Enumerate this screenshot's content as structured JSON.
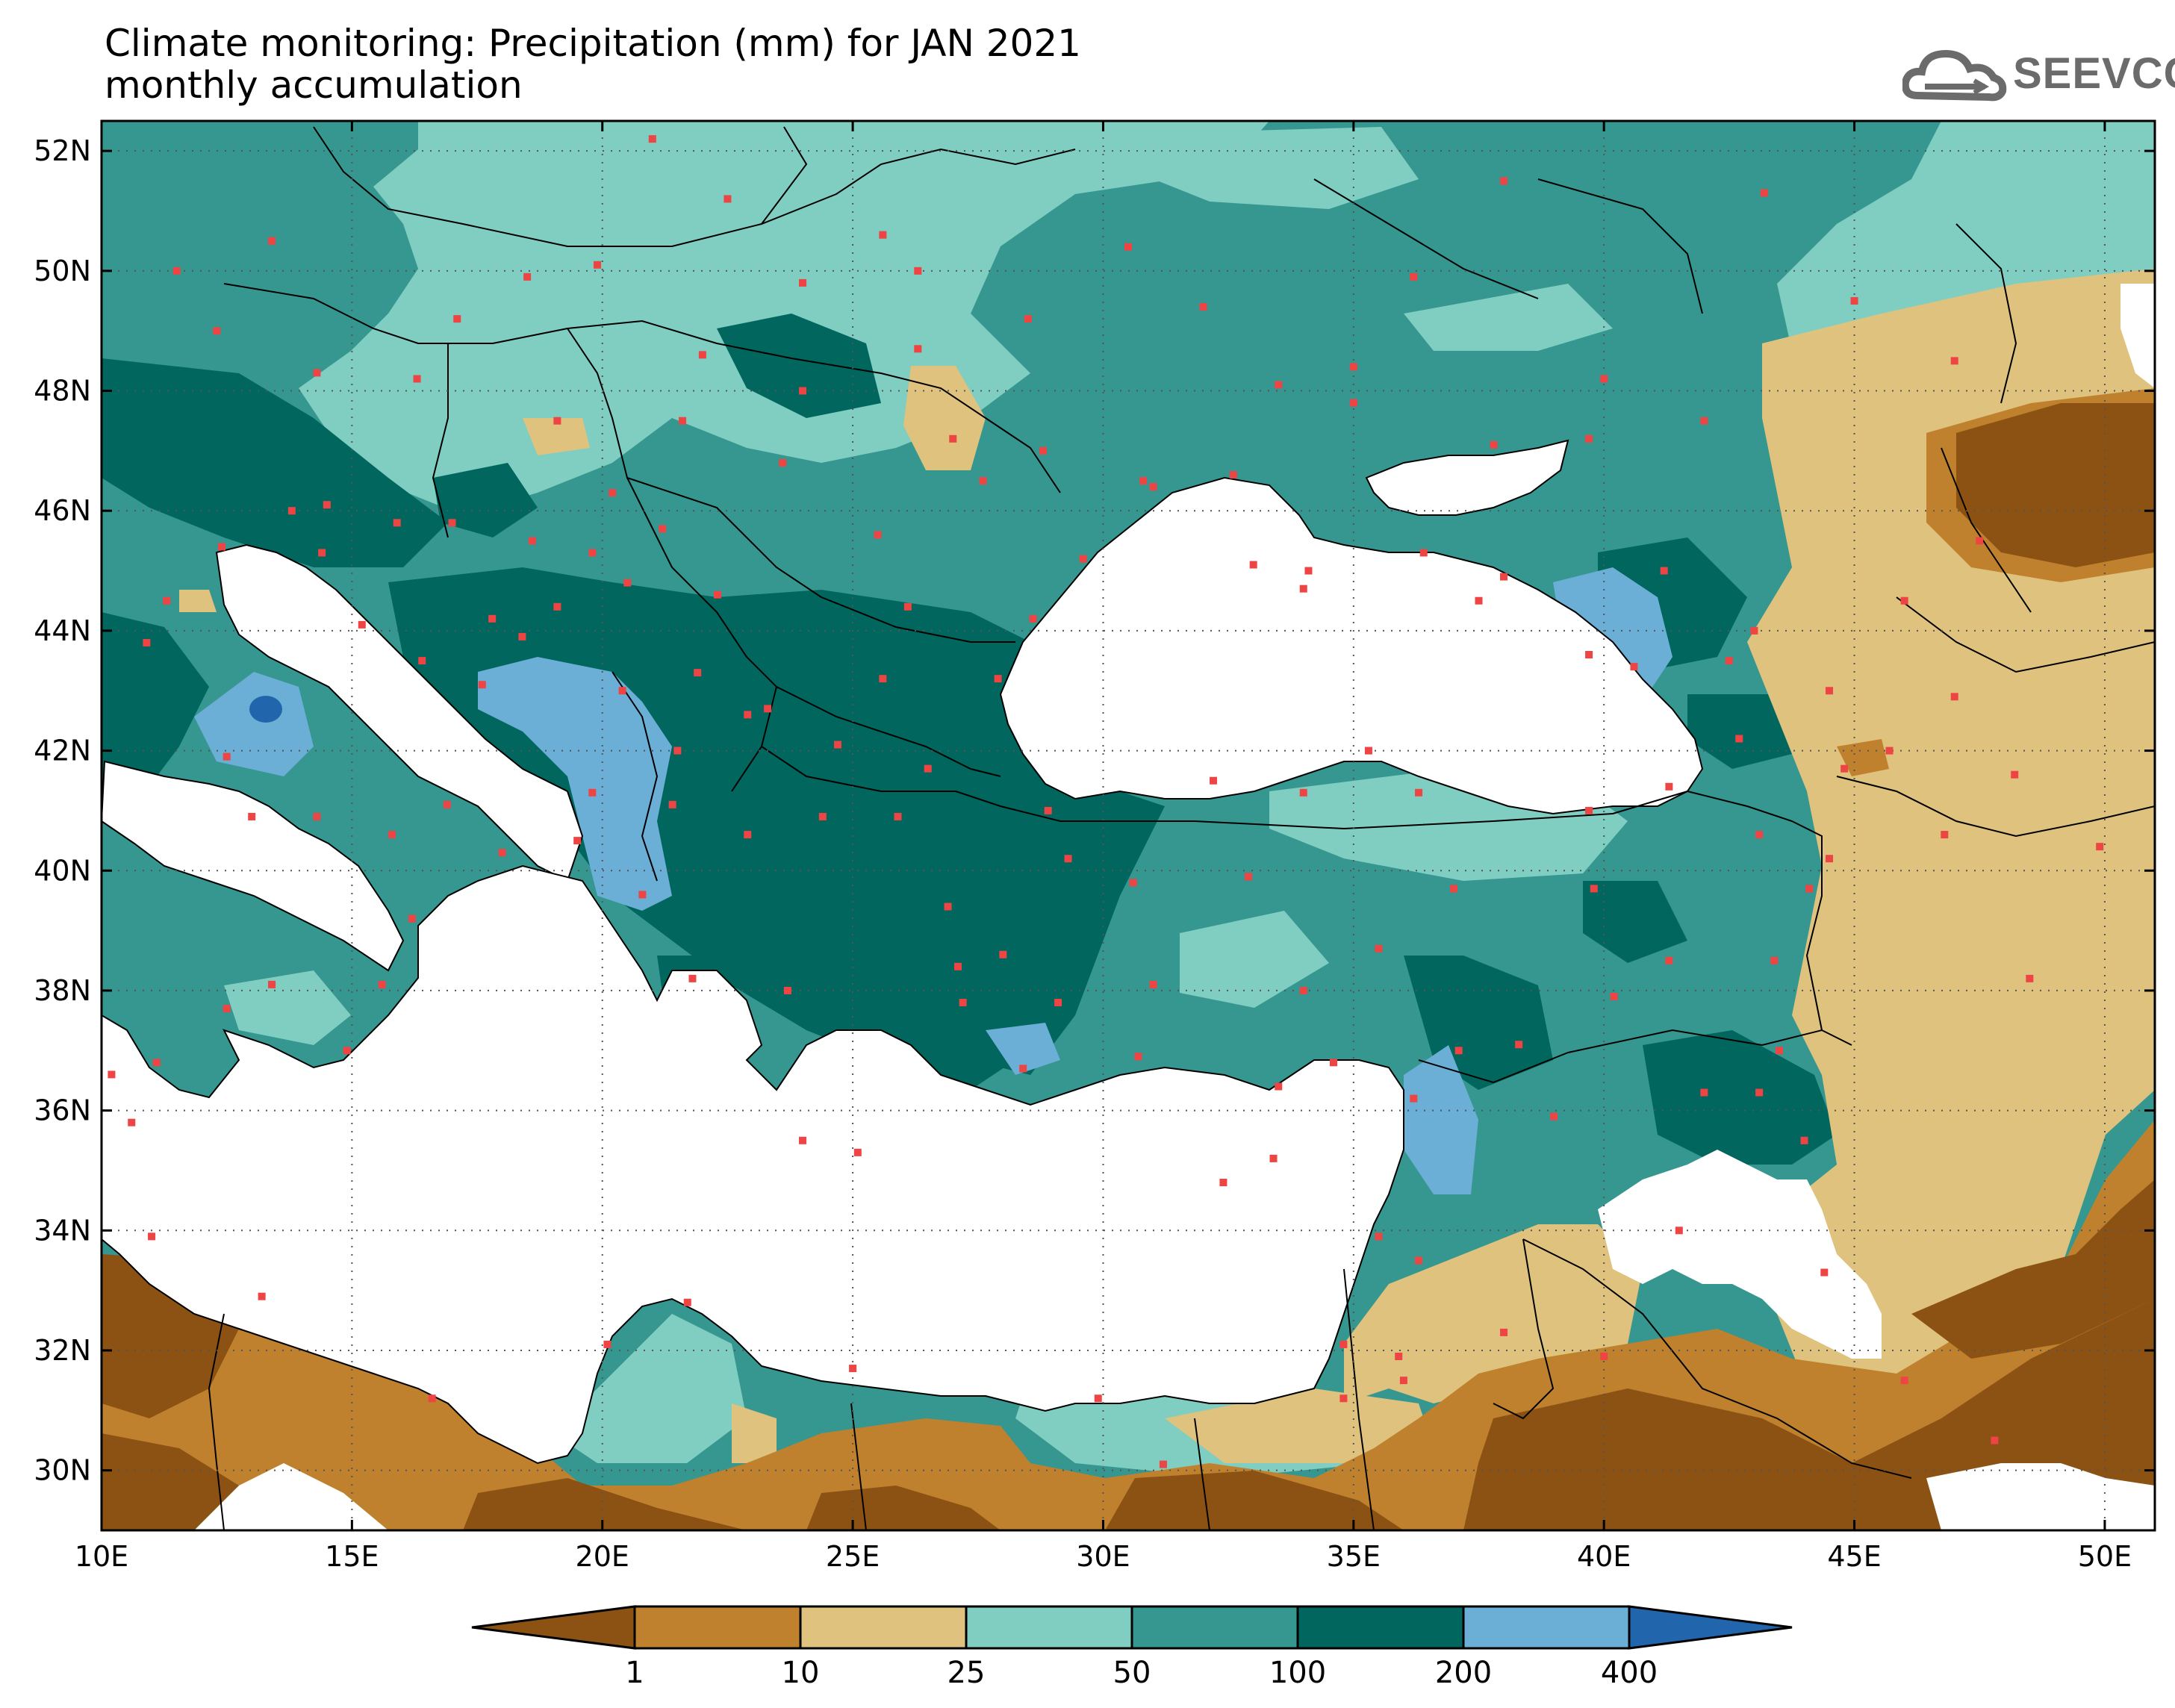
{
  "title": {
    "line1": "Climate monitoring: Precipitation (mm) for JAN 2021",
    "line2": "monthly accumulation"
  },
  "logo": {
    "text": "SEEVCCC",
    "icon": "cloud-icon"
  },
  "map": {
    "lon_range": [
      10,
      51
    ],
    "lat_range": [
      29,
      52.5
    ],
    "x_ticks": [
      "10E",
      "15E",
      "20E",
      "25E",
      "30E",
      "35E",
      "40E",
      "45E",
      "50E"
    ],
    "y_ticks": [
      "52N",
      "50N",
      "48N",
      "46N",
      "44N",
      "42N",
      "40N",
      "38N",
      "36N",
      "34N",
      "32N",
      "30N"
    ],
    "grid": "dotted",
    "station_color": "#ee4444"
  },
  "colorbar": {
    "labels": [
      "1",
      "10",
      "25",
      "50",
      "100",
      "200",
      "400"
    ],
    "colors": [
      "#8c5214",
      "#bf812d",
      "#dfc27d",
      "#80cdc1",
      "#35978f",
      "#01665e",
      "#6baed6",
      "#2166ac"
    ]
  }
}
